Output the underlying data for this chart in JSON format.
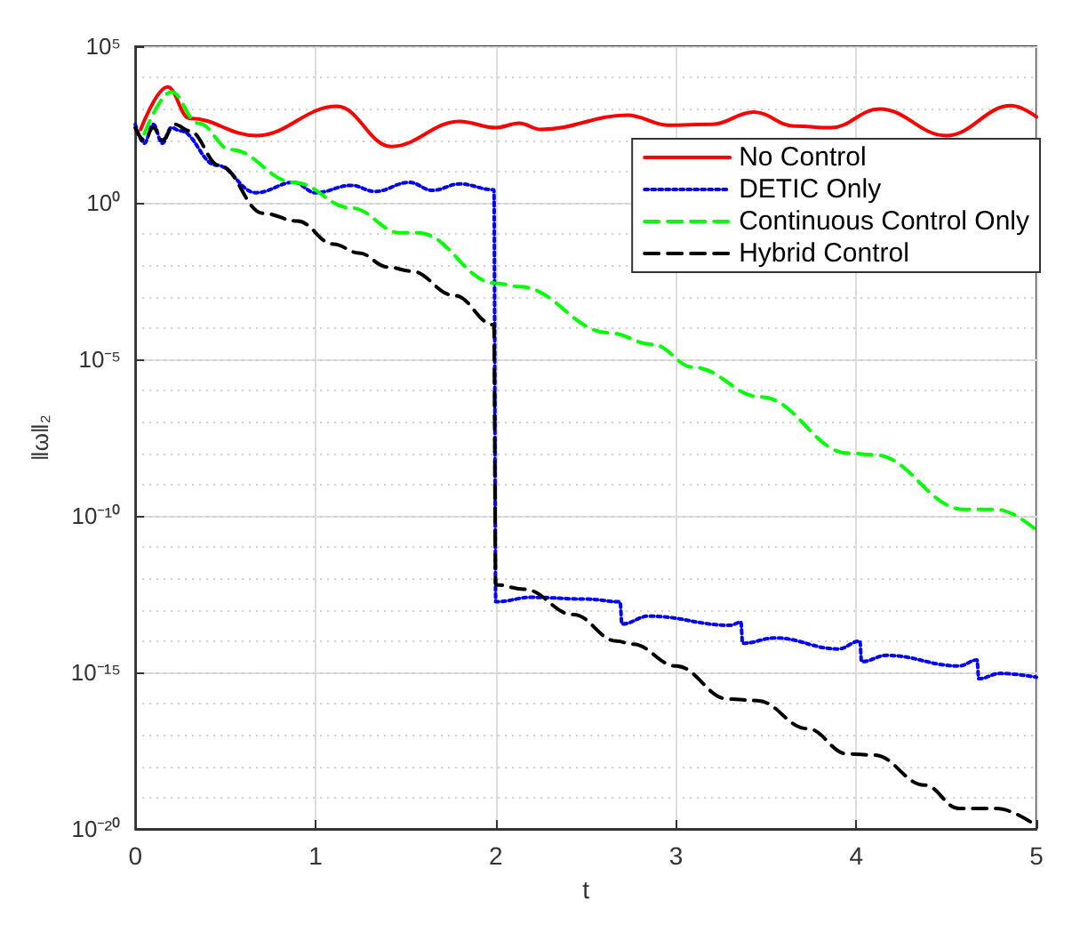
{
  "chart_data": {
    "type": "line",
    "xlabel": "t",
    "ylabel": "‖ω‖₂",
    "xlim": [
      0,
      5
    ],
    "xticks": [
      0,
      1,
      2,
      3,
      4,
      5
    ],
    "ylim": [
      1e-20,
      100000.0
    ],
    "yticks": [
      {
        "value": 1e-20,
        "label": "10⁻²⁰"
      },
      {
        "value": 1e-15,
        "label": "10⁻¹⁵"
      },
      {
        "value": 1e-10,
        "label": "10⁻¹⁰"
      },
      {
        "value": 1e-05,
        "label": "10⁻⁵"
      },
      {
        "value": 1,
        "label": "10⁰"
      },
      {
        "value": 100000.0,
        "label": "10⁵"
      }
    ],
    "log": "y",
    "grid": true,
    "legend": "top right",
    "marker": "none",
    "series": [
      {
        "name": "No Control",
        "color": "#ff0000",
        "line_style": "solid",
        "x": [
          0.03,
          0.18,
          0.3,
          0.67,
          1.12,
          1.42,
          1.8,
          2.0,
          2.13,
          2.25,
          2.73,
          2.96,
          3.2,
          3.43,
          3.66,
          3.86,
          4.13,
          4.5,
          4.86,
          5.0
        ],
        "values": [
          220,
          5000,
          500,
          140,
          1200,
          63,
          400,
          250,
          350,
          220,
          630,
          300,
          320,
          790,
          280,
          250,
          1000,
          140,
          1260,
          560
        ]
      },
      {
        "name": "DETIC Only",
        "color": "#0000ff",
        "line_style": "dotted",
        "x": [
          0,
          0.05,
          0.1,
          0.15,
          0.2,
          0.25,
          0.45,
          0.67,
          0.88,
          1.0,
          1.2,
          1.33,
          1.52,
          1.65,
          1.8,
          1.99,
          2.0,
          2.2,
          2.5,
          2.69,
          2.7,
          2.85,
          3.3,
          3.36,
          3.37,
          3.55,
          3.9,
          4.02,
          4.03,
          4.17,
          4.57,
          4.67,
          4.68,
          4.8,
          5.0
        ],
        "values": [
          320,
          80,
          320,
          80,
          250,
          200,
          16,
          2.1,
          4.5,
          2.1,
          3.6,
          2.3,
          4.5,
          2.5,
          4,
          2.6,
          1.8e-13,
          2.5e-13,
          2.2e-13,
          1.8e-13,
          3.5e-14,
          6.3e-14,
          3.2e-14,
          4e-14,
          8.5e-15,
          1.26e-14,
          5.6e-15,
          1e-14,
          2.2e-15,
          3.5e-15,
          1.6e-15,
          2.5e-15,
          6.3e-16,
          9.3e-16,
          7e-16
        ]
      },
      {
        "name": "Continuous Control Only",
        "color": "#00ff00",
        "line_style": "dashed",
        "x": [
          0.05,
          0.2,
          0.35,
          0.53,
          0.88,
          1.2,
          1.47,
          1.57,
          2.0,
          2.13,
          2.63,
          2.87,
          3.1,
          3.47,
          3.96,
          4.1,
          4.6,
          4.78,
          5.0
        ],
        "values": [
          160,
          3500,
          350,
          50,
          4.5,
          0.68,
          0.11,
          0.11,
          0.0027,
          0.0021,
          7e-05,
          3e-05,
          5.5e-06,
          6.3e-07,
          1e-08,
          8.9e-09,
          1.6e-10,
          1.6e-10,
          3.5e-11
        ]
      },
      {
        "name": "Hybrid Control",
        "color": "#000000",
        "line_style": "dashed",
        "x": [
          0,
          0.05,
          0.1,
          0.15,
          0.22,
          0.3,
          0.47,
          0.71,
          0.9,
          1.1,
          1.24,
          1.4,
          1.53,
          1.77,
          1.99,
          2.0,
          2.16,
          2.43,
          2.67,
          2.76,
          3.0,
          3.29,
          3.45,
          3.73,
          3.95,
          4.1,
          4.38,
          4.57,
          4.78,
          5.0
        ],
        "values": [
          250,
          100,
          250,
          100,
          320,
          200,
          15,
          0.46,
          0.26,
          0.048,
          0.025,
          0.0089,
          0.0066,
          0.0011,
          0.000126,
          6.3e-13,
          4.5e-13,
          7e-14,
          1e-14,
          8e-15,
          1.6e-15,
          1.4e-16,
          1.26e-16,
          1.6e-17,
          2.5e-18,
          2.3e-18,
          2.5e-19,
          4.5e-20,
          4.5e-20,
          1.26e-20
        ]
      }
    ]
  }
}
